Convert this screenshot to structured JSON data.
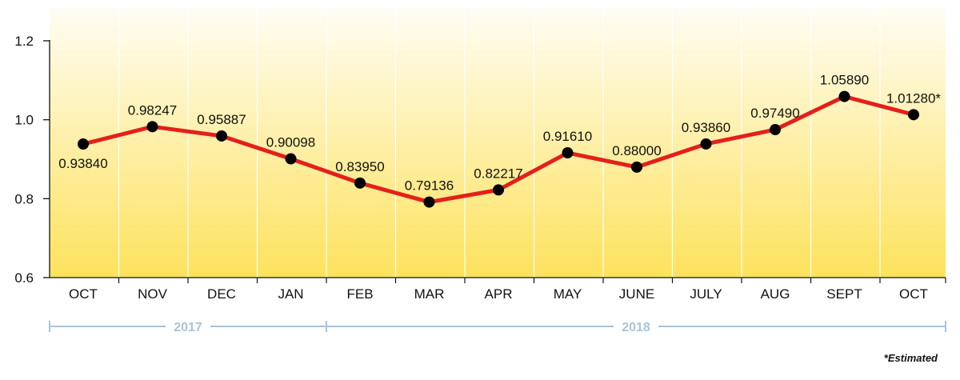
{
  "chart_data": {
    "type": "line",
    "categories": [
      "OCT",
      "NOV",
      "DEC",
      "JAN",
      "FEB",
      "MAR",
      "APR",
      "MAY",
      "JUNE",
      "JULY",
      "AUG",
      "SEPT",
      "OCT"
    ],
    "values": [
      0.9384,
      0.98247,
      0.95887,
      0.90098,
      0.8395,
      0.79136,
      0.82217,
      0.9161,
      0.88,
      0.9386,
      0.9749,
      1.0589,
      1.0128
    ],
    "data_labels": [
      "0.93840",
      "0.98247",
      "0.95887",
      "0.90098",
      "0.83950",
      "0.79136",
      "0.82217",
      "0.91610",
      "0.88000",
      "0.93860",
      "0.97490",
      "1.05890",
      "1.01280*"
    ],
    "ylim": [
      0.6,
      1.2
    ],
    "yticks": [
      "0.6",
      "0.8",
      "1.0",
      "1.2"
    ],
    "grid": "vertical",
    "year_groups": [
      {
        "label": "2017",
        "start": 0,
        "end": 3
      },
      {
        "label": "2018",
        "start": 4,
        "end": 12
      }
    ],
    "footnote": "*Estimated",
    "colors": {
      "line": "#e3201b",
      "marker": "#000000",
      "background_top": "#fffdf4",
      "background_bottom": "#fde25c",
      "year_rule": "#a9c3dc"
    }
  }
}
